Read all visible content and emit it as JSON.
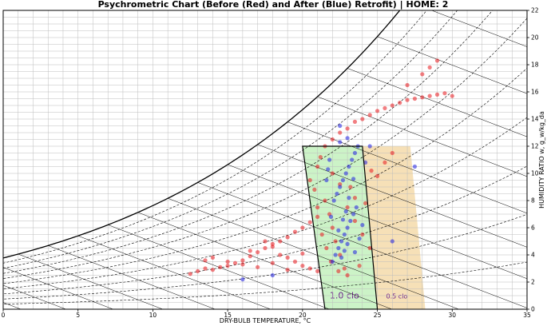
{
  "chart_data": {
    "type": "scatter",
    "title": "Psychrometric Chart (Before (Red) and After (Blue) Retrofit) | HOME: 2",
    "xlabel": "DRY-BULB TEMPERATURE, °C",
    "ylabel": "HUMIDITY RATIO w, g_w/kg_da",
    "xlim": [
      0,
      35
    ],
    "ylim": [
      0,
      22
    ],
    "x_ticks": [
      0,
      5,
      10,
      15,
      20,
      25,
      30,
      35
    ],
    "y_ticks": [
      0,
      2,
      4,
      6,
      8,
      10,
      12,
      14,
      16,
      18,
      20,
      22
    ],
    "grid": true,
    "comfort_zones": [
      {
        "label": "1.0 clo",
        "color": "#c9f2c4",
        "polygon": [
          [
            20.0,
            12.0
          ],
          [
            24.0,
            12.0
          ],
          [
            25.0,
            0.0
          ],
          [
            21.5,
            0.0
          ]
        ]
      },
      {
        "label": "0.5 clo",
        "color": "#f5deb3",
        "polygon": [
          [
            24.0,
            12.0
          ],
          [
            27.2,
            12.0
          ],
          [
            28.2,
            0.0
          ],
          [
            25.0,
            0.0
          ]
        ]
      }
    ],
    "series": [
      {
        "color": "#e8161b",
        "points": [
          [
            12.5,
            2.6
          ],
          [
            13.0,
            2.8
          ],
          [
            13.5,
            3.0
          ],
          [
            14.0,
            2.9
          ],
          [
            14.5,
            3.1
          ],
          [
            15.0,
            3.2
          ],
          [
            15.5,
            3.4
          ],
          [
            16.0,
            3.6
          ],
          [
            16.5,
            3.9
          ],
          [
            17.0,
            4.2
          ],
          [
            17.5,
            4.5
          ],
          [
            18.0,
            4.8
          ],
          [
            18.5,
            5.0
          ],
          [
            19.0,
            5.3
          ],
          [
            19.5,
            5.7
          ],
          [
            20.0,
            6.0
          ],
          [
            20.5,
            6.4
          ],
          [
            21.0,
            6.8
          ],
          [
            16.5,
            4.3
          ],
          [
            17.5,
            5.0
          ],
          [
            18.0,
            4.6
          ],
          [
            18.5,
            4.0
          ],
          [
            19.0,
            3.8
          ],
          [
            19.5,
            3.5
          ],
          [
            20.0,
            3.2
          ],
          [
            20.5,
            3.0
          ],
          [
            21.0,
            2.8
          ],
          [
            13.5,
            3.6
          ],
          [
            14.0,
            3.8
          ],
          [
            15.0,
            3.5
          ],
          [
            16.0,
            3.3
          ],
          [
            17.0,
            3.1
          ],
          [
            18.0,
            3.4
          ],
          [
            19.0,
            2.9
          ],
          [
            20.0,
            4.1
          ],
          [
            20.5,
            9.5
          ],
          [
            21.0,
            10.5
          ],
          [
            21.2,
            11.2
          ],
          [
            21.5,
            12.0
          ],
          [
            22.0,
            12.5
          ],
          [
            22.5,
            13.0
          ],
          [
            23.0,
            13.3
          ],
          [
            23.5,
            13.8
          ],
          [
            24.0,
            14.0
          ],
          [
            24.5,
            14.3
          ],
          [
            25.0,
            14.6
          ],
          [
            25.5,
            14.8
          ],
          [
            26.0,
            15.0
          ],
          [
            26.5,
            15.2
          ],
          [
            27.0,
            15.4
          ],
          [
            27.5,
            15.5
          ],
          [
            28.0,
            15.6
          ],
          [
            28.5,
            15.7
          ],
          [
            29.0,
            15.8
          ],
          [
            29.5,
            15.9
          ],
          [
            30.0,
            15.7
          ],
          [
            27.0,
            16.5
          ],
          [
            28.0,
            17.3
          ],
          [
            28.5,
            17.8
          ],
          [
            29.0,
            18.3
          ],
          [
            21.5,
            8.0
          ],
          [
            21.8,
            7.0
          ],
          [
            22.0,
            6.0
          ],
          [
            22.2,
            5.0
          ],
          [
            22.5,
            4.0
          ],
          [
            22.8,
            3.0
          ],
          [
            23.0,
            2.5
          ],
          [
            23.2,
            9.0
          ],
          [
            23.5,
            8.2
          ],
          [
            22.0,
            10.0
          ],
          [
            22.5,
            9.2
          ],
          [
            23.0,
            7.5
          ],
          [
            23.5,
            6.5
          ],
          [
            24.0,
            5.5
          ],
          [
            24.5,
            4.5
          ],
          [
            25.0,
            9.8
          ],
          [
            25.5,
            10.8
          ],
          [
            26.0,
            11.5
          ],
          [
            21.0,
            7.5
          ],
          [
            21.3,
            5.5
          ],
          [
            21.6,
            4.5
          ],
          [
            21.9,
            3.5
          ],
          [
            22.4,
            2.8
          ],
          [
            23.8,
            3.2
          ],
          [
            24.2,
            7.8
          ],
          [
            24.6,
            10.2
          ],
          [
            20.8,
            8.8
          ]
        ]
      },
      {
        "color": "#1f1fe0",
        "points": [
          [
            22.0,
            3.5
          ],
          [
            22.2,
            4.0
          ],
          [
            22.4,
            4.5
          ],
          [
            22.6,
            5.0
          ],
          [
            22.8,
            5.5
          ],
          [
            23.0,
            6.0
          ],
          [
            23.2,
            6.5
          ],
          [
            23.4,
            7.0
          ],
          [
            23.6,
            7.5
          ],
          [
            22.1,
            8.0
          ],
          [
            22.3,
            8.5
          ],
          [
            22.5,
            9.0
          ],
          [
            22.7,
            9.5
          ],
          [
            22.9,
            10.0
          ],
          [
            23.1,
            10.5
          ],
          [
            23.3,
            11.0
          ],
          [
            23.5,
            11.5
          ],
          [
            23.7,
            12.0
          ],
          [
            22.5,
            12.3
          ],
          [
            23.0,
            12.6
          ],
          [
            21.8,
            11.0
          ],
          [
            21.6,
            9.5
          ],
          [
            21.9,
            6.8
          ],
          [
            23.5,
            4.2
          ],
          [
            23.8,
            5.2
          ],
          [
            24.0,
            6.2
          ],
          [
            22.6,
            3.8
          ],
          [
            22.8,
            4.3
          ],
          [
            23.0,
            4.8
          ],
          [
            22.4,
            5.8
          ],
          [
            22.9,
            7.2
          ],
          [
            23.1,
            8.2
          ],
          [
            22.7,
            6.6
          ],
          [
            23.4,
            9.6
          ],
          [
            21.7,
            10.3
          ],
          [
            24.2,
            10.8
          ],
          [
            16.0,
            2.2
          ],
          [
            18.0,
            2.5
          ],
          [
            26.0,
            5.0
          ],
          [
            27.5,
            10.5
          ],
          [
            22.5,
            13.5
          ],
          [
            24.5,
            12.0
          ]
        ]
      }
    ]
  }
}
